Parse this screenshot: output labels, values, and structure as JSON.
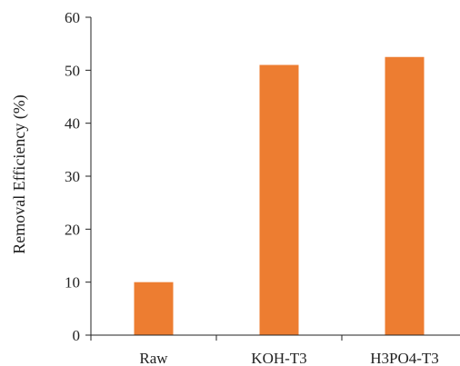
{
  "chart_data": {
    "type": "bar",
    "categories": [
      "Raw",
      "KOH-T3",
      "H3PO4-T3"
    ],
    "values": [
      10,
      51,
      52.5
    ],
    "ylabel": "Removal Efficiency (%)",
    "xlabel": "",
    "ylim": [
      0,
      60
    ],
    "yticks": [
      "0",
      "10",
      "20",
      "30",
      "40",
      "50",
      "60"
    ],
    "grid": false,
    "legend": "none",
    "bar_color": "#ED7D31",
    "axis_color": "#222222"
  }
}
